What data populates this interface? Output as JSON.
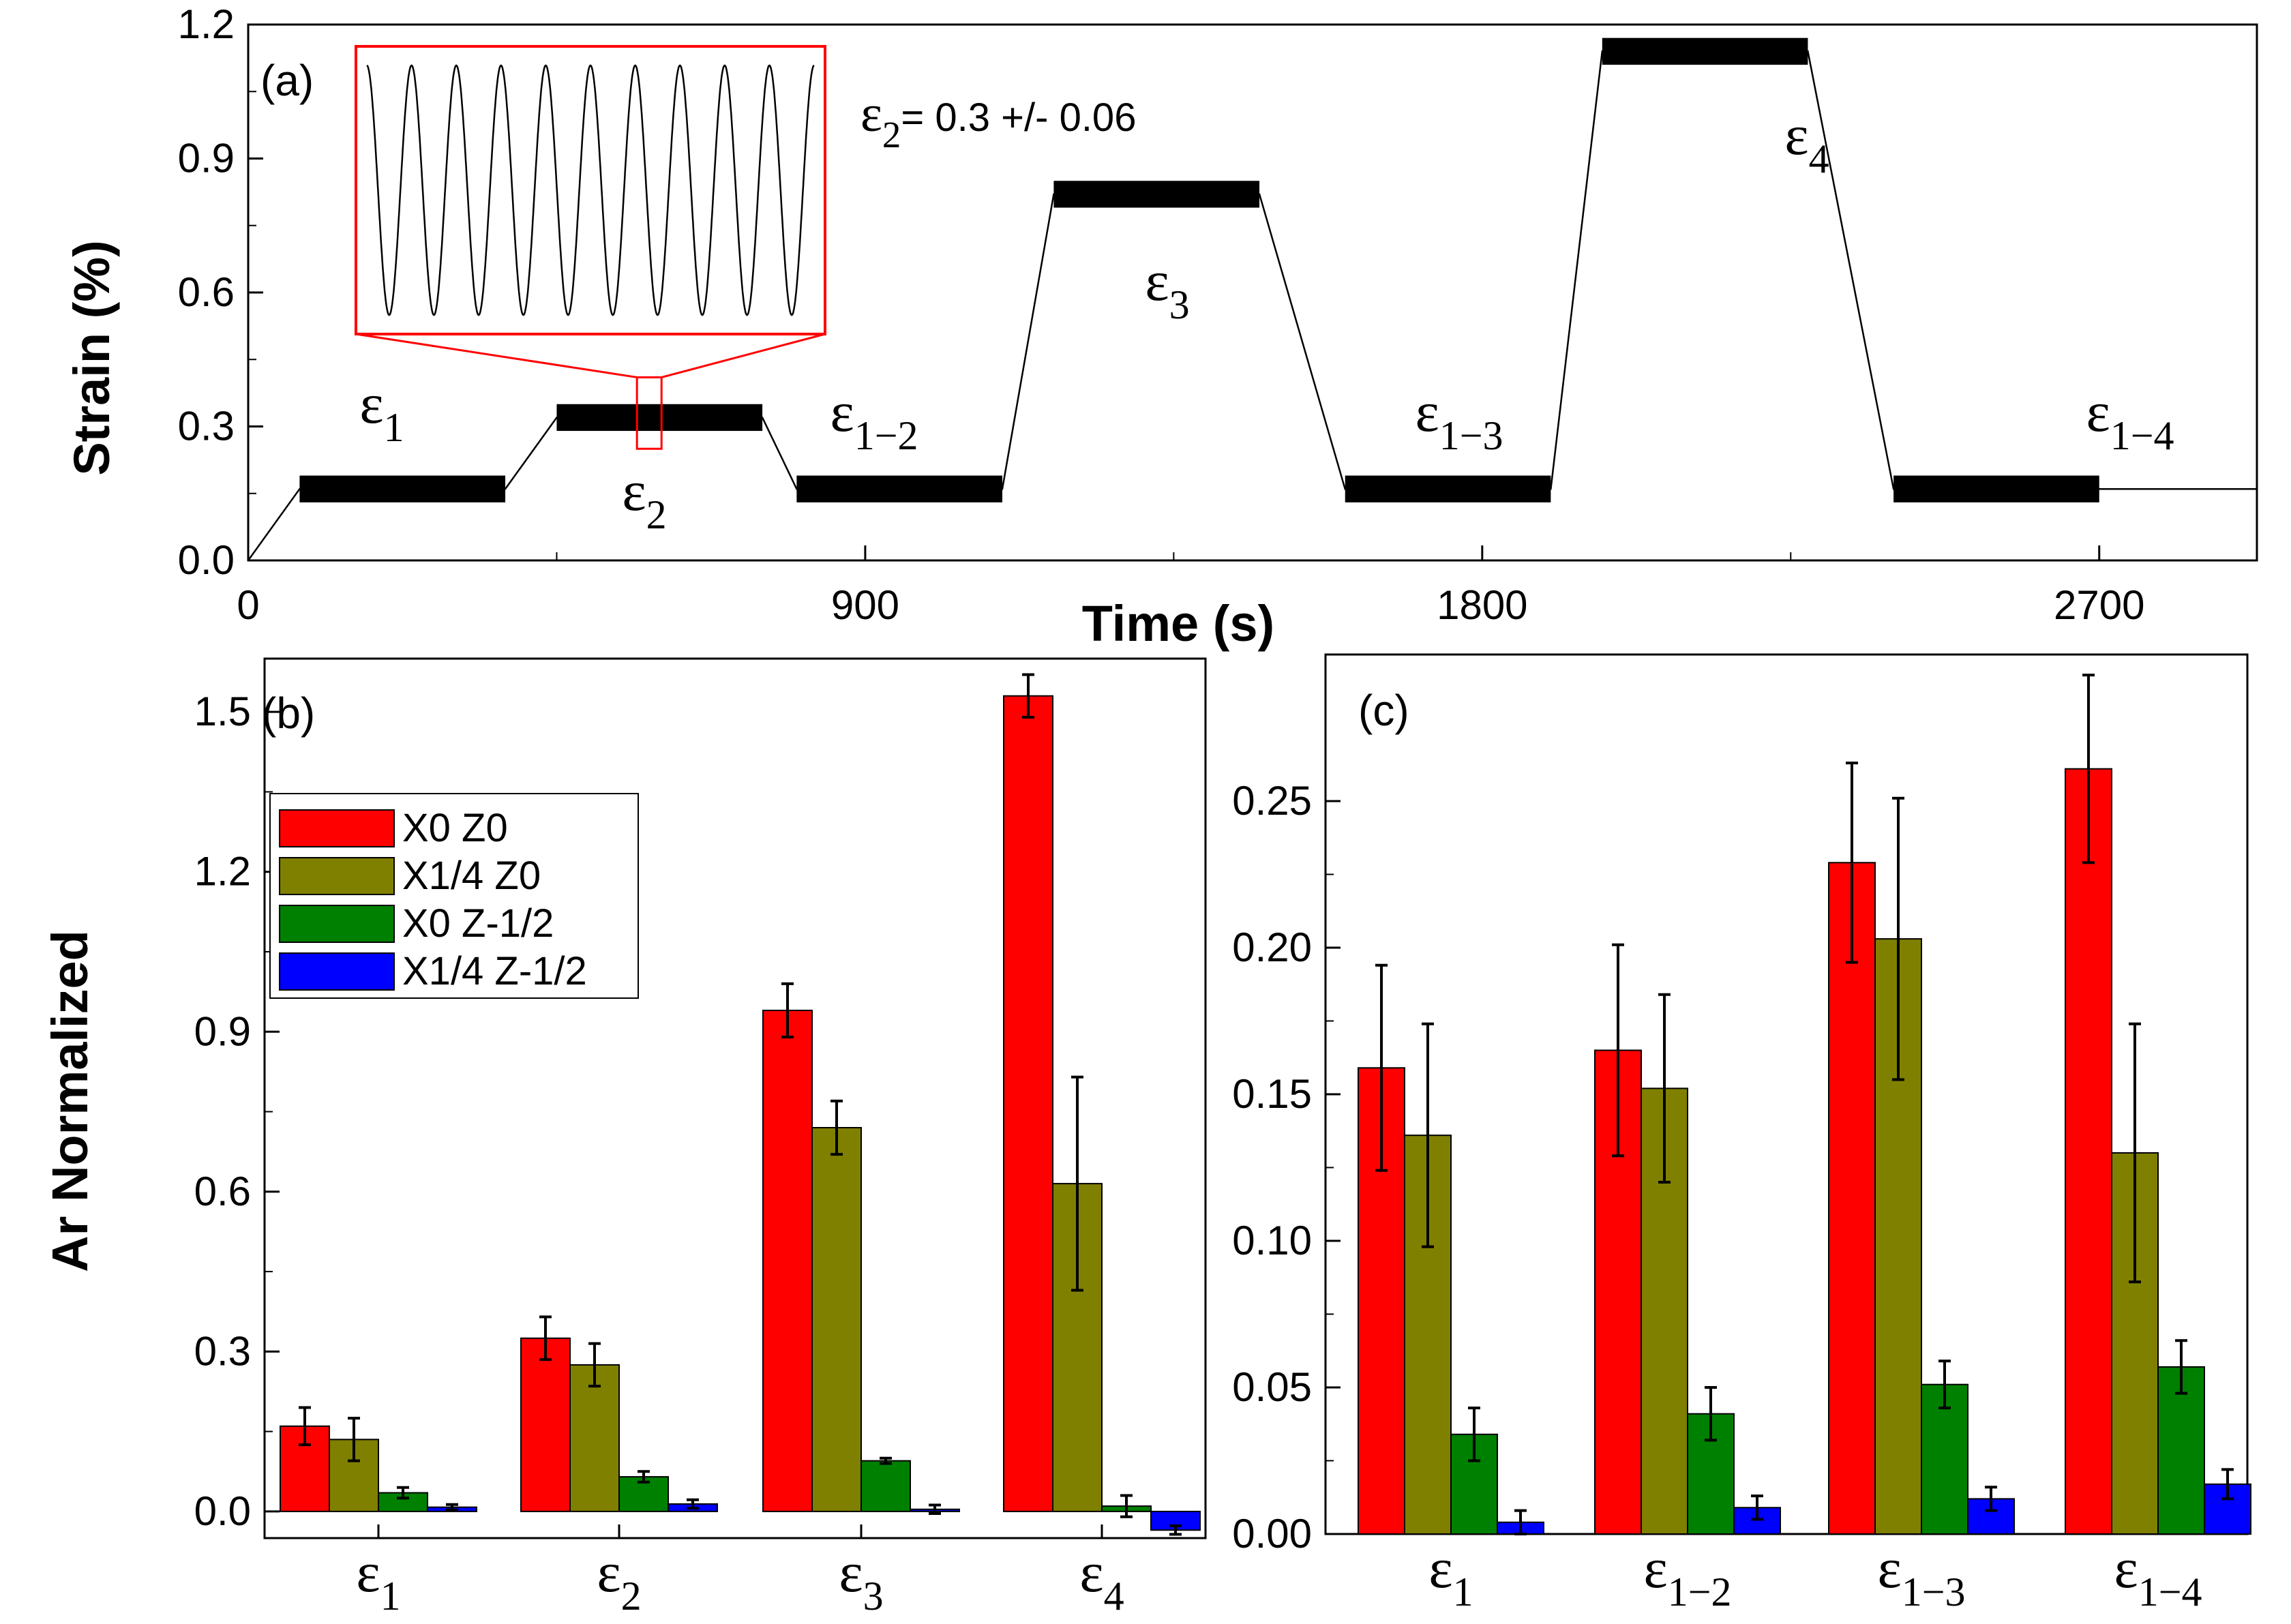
{
  "colors": {
    "x0z0": "#ff0000",
    "x14z0": "#808000",
    "x0zm12": "#008000",
    "x14zm12": "#0000ff",
    "inset": "#ff0000",
    "trace": "#000000"
  },
  "chart_data": [
    {
      "panel": "(a)",
      "type": "line",
      "xlabel": "Time (s)",
      "ylabel": "Strain (%)",
      "xlim": [
        0,
        2930
      ],
      "ylim": [
        0,
        1.2
      ],
      "xticks": [
        "0",
        "900",
        "1800",
        "2700"
      ],
      "yticks": [
        "0.0",
        "0.3",
        "0.6",
        "0.9",
        "1.2"
      ],
      "x": [
        0,
        75,
        375,
        450,
        750,
        800,
        1100,
        1175,
        1475,
        1600,
        1900,
        1975,
        2275,
        2400,
        2700,
        2775,
        2930
      ],
      "y": [
        0,
        0.16,
        0.16,
        0.32,
        0.32,
        0.16,
        0.16,
        0.82,
        0.82,
        0.16,
        0.16,
        1.14,
        1.14,
        0.16,
        0.16,
        0.16,
        0.16
      ],
      "hold_segments": [
        {
          "name": "ε1",
          "t_start": 75,
          "t_end": 375,
          "strain": 0.16
        },
        {
          "name": "ε2",
          "t_start": 450,
          "t_end": 750,
          "strain": 0.32
        },
        {
          "name": "ε1-2",
          "t_start": 800,
          "t_end": 1100,
          "strain": 0.16
        },
        {
          "name": "ε3",
          "t_start": 1175,
          "t_end": 1475,
          "strain": 0.82
        },
        {
          "name": "ε1-3",
          "t_start": 1600,
          "t_end": 1900,
          "strain": 0.16
        },
        {
          "name": "ε4",
          "t_start": 1975,
          "t_end": 2275,
          "strain": 1.14
        },
        {
          "name": "ε1-4",
          "t_start": 2400,
          "t_end": 2700,
          "strain": 0.16
        }
      ],
      "oscillation_amplitude": 0.03,
      "annotations": [
        {
          "base": "ε",
          "sub": "1"
        },
        {
          "base": "ε",
          "sub": "2"
        },
        {
          "base": "ε",
          "sub": "1−2"
        },
        {
          "base": "ε",
          "sub": "3"
        },
        {
          "base": "ε",
          "sub": "1−3"
        },
        {
          "base": "ε",
          "sub": "4"
        },
        {
          "base": "ε",
          "sub": "1−4"
        }
      ],
      "inset_label": {
        "base": "ε",
        "sub": "2",
        "text": "= 0.3 +/- 0.06"
      },
      "inset_cycles": 10
    },
    {
      "panel": "(b)",
      "type": "bar",
      "ylabel": "Ar Normalized",
      "ylim": [
        -0.05,
        1.6
      ],
      "yticks": [
        "0.0",
        "0.3",
        "0.6",
        "0.9",
        "1.2",
        "1.5"
      ],
      "categories": [
        {
          "base": "ε",
          "sub": "1"
        },
        {
          "base": "ε",
          "sub": "2"
        },
        {
          "base": "ε",
          "sub": "3"
        },
        {
          "base": "ε",
          "sub": "4"
        }
      ],
      "series": [
        {
          "name": "X0 Z0",
          "values": [
            0.16,
            0.325,
            0.94,
            1.53
          ],
          "errors": [
            0.035,
            0.04,
            0.05,
            0.04
          ]
        },
        {
          "name": "X1/4 Z0",
          "values": [
            0.135,
            0.275,
            0.72,
            0.615
          ],
          "errors": [
            0.04,
            0.04,
            0.05,
            0.2
          ]
        },
        {
          "name": "X0 Z-1/2",
          "values": [
            0.035,
            0.065,
            0.095,
            0.01
          ],
          "errors": [
            0.01,
            0.01,
            0.005,
            0.02
          ]
        },
        {
          "name": "X1/4 Z-1/2",
          "values": [
            0.008,
            0.014,
            0.004,
            -0.035
          ],
          "errors": [
            0.005,
            0.008,
            0.008,
            0.008
          ]
        }
      ],
      "legend": [
        "X0 Z0",
        "X1/4 Z0",
        "X0 Z-1/2",
        "X1/4 Z-1/2"
      ]
    },
    {
      "panel": "(c)",
      "type": "bar",
      "ylim": [
        0,
        0.3
      ],
      "yticks": [
        "0.00",
        "0.05",
        "0.10",
        "0.15",
        "0.20",
        "0.25"
      ],
      "categories": [
        {
          "base": "ε",
          "sub": "1"
        },
        {
          "base": "ε",
          "sub": "1−2"
        },
        {
          "base": "ε",
          "sub": "1−3"
        },
        {
          "base": "ε",
          "sub": "1−4"
        }
      ],
      "series": [
        {
          "name": "X0 Z0",
          "values": [
            0.159,
            0.165,
            0.229,
            0.261
          ],
          "errors": [
            0.035,
            0.036,
            0.034,
            0.032
          ]
        },
        {
          "name": "X1/4 Z0",
          "values": [
            0.136,
            0.152,
            0.203,
            0.13
          ],
          "errors": [
            0.038,
            0.032,
            0.048,
            0.044
          ]
        },
        {
          "name": "X0 Z-1/2",
          "values": [
            0.034,
            0.041,
            0.051,
            0.057
          ],
          "errors": [
            0.009,
            0.009,
            0.008,
            0.009
          ]
        },
        {
          "name": "X1/4 Z-1/2",
          "values": [
            0.004,
            0.009,
            0.012,
            0.017
          ],
          "errors": [
            0.004,
            0.004,
            0.004,
            0.005
          ]
        }
      ]
    }
  ]
}
